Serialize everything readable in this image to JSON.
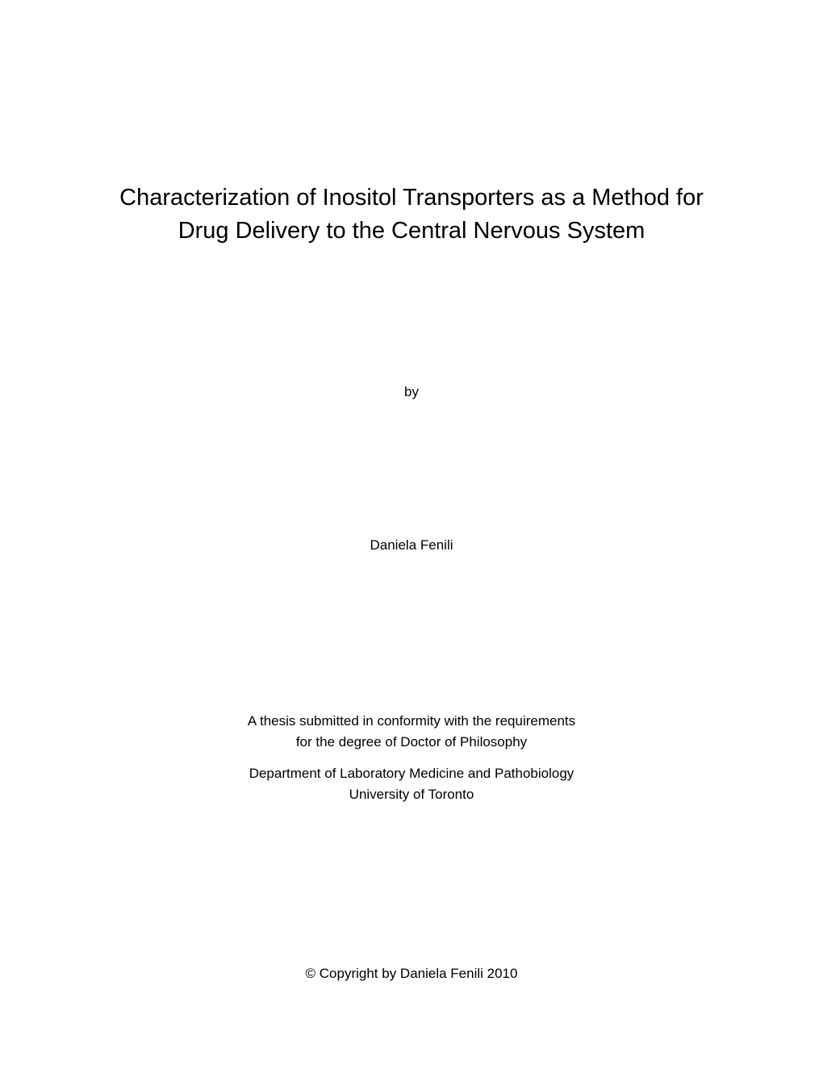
{
  "document": {
    "title": "Characterization of Inositol Transporters as a Method for Drug Delivery to the Central Nervous System",
    "by_label": "by",
    "author": "Daniela Fenili",
    "submission_line1": "A thesis submitted in conformity with the requirements",
    "submission_line2": "for the degree of Doctor of Philosophy",
    "department_line1": "Department of Laboratory Medicine and Pathobiology",
    "department_line2": "University of Toronto",
    "copyright": "© Copyright by Daniela Fenili 2010"
  },
  "style": {
    "background_color": "#ffffff",
    "text_color": "#000000",
    "title_fontsize": 29,
    "body_fontsize": 17,
    "font_family": "Arial"
  }
}
